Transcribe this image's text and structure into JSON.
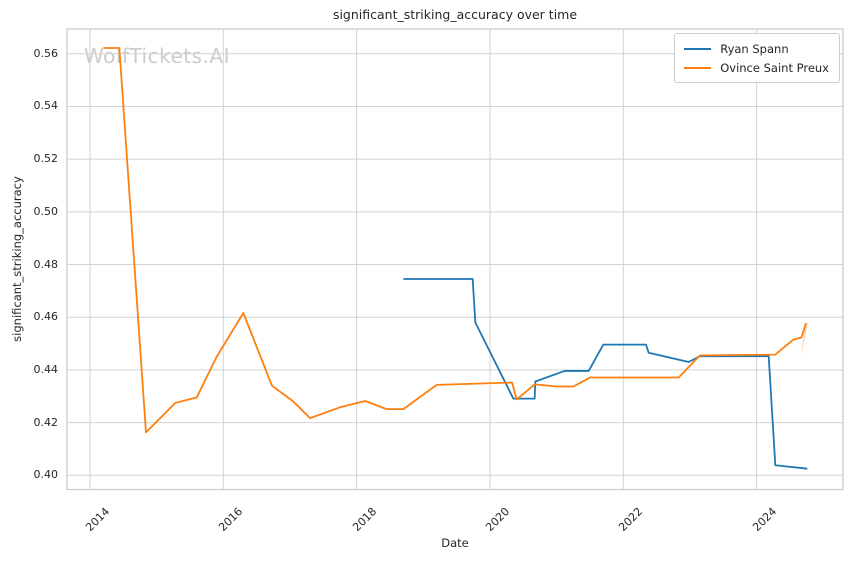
{
  "figure": {
    "title": "significant_striking_accuracy over time",
    "xlabel": "Date",
    "ylabel": "significant_striking_accuracy",
    "watermark": "WolfTickets.AI"
  },
  "chart_data": {
    "type": "line",
    "title": "significant_striking_accuracy over time",
    "xlabel": "Date",
    "ylabel": "significant_striking_accuracy",
    "watermark": "WolfTickets.AI",
    "grid": true,
    "legend_position": "upper-right",
    "x_unit": "decimal_year",
    "xlim": [
      2013.655,
      2025.295
    ],
    "ylim": [
      0.3946,
      0.5694
    ],
    "x_ticks": [
      "2014",
      "2016",
      "2018",
      "2020",
      "2022",
      "2024"
    ],
    "x_tick_values": [
      2014,
      2016,
      2018,
      2020,
      2022,
      2024
    ],
    "y_ticks": [
      "0.40",
      "0.42",
      "0.44",
      "0.46",
      "0.48",
      "0.50",
      "0.52",
      "0.54",
      "0.56"
    ],
    "y_tick_values": [
      0.4,
      0.42,
      0.44,
      0.46,
      0.48,
      0.5,
      0.52,
      0.54,
      0.56
    ],
    "colors": {
      "grid": "#d4d4d4",
      "spine": "#c9c9c9",
      "text": "#262626",
      "watermark": "#cccccc",
      "ryan_spann": "#1f77b4",
      "ovince_saint_preux": "#ff7f0e"
    },
    "series": [
      {
        "name": "Ryan Spann",
        "color": "#1f77b4",
        "points": [
          [
            2018.7,
            0.4745
          ],
          [
            2019.74,
            0.4745
          ],
          [
            2019.78,
            0.458
          ],
          [
            2020.35,
            0.4291
          ],
          [
            2020.67,
            0.4291
          ],
          [
            2020.68,
            0.4356
          ],
          [
            2021.12,
            0.4396
          ],
          [
            2021.48,
            0.4396
          ],
          [
            2021.7,
            0.4496
          ],
          [
            2022.34,
            0.4496
          ],
          [
            2022.38,
            0.4465
          ],
          [
            2022.98,
            0.443
          ],
          [
            2023.15,
            0.4452
          ],
          [
            2024.18,
            0.4452
          ],
          [
            2024.28,
            0.4038
          ],
          [
            2024.76,
            0.4025
          ]
        ]
      },
      {
        "name": "Ovince Saint Preux",
        "color": "#ff7f0e",
        "points": [
          [
            2014.2,
            0.5622
          ],
          [
            2014.44,
            0.5622
          ],
          [
            2014.84,
            0.4163
          ],
          [
            2015.28,
            0.4275
          ],
          [
            2015.6,
            0.4295
          ],
          [
            2015.9,
            0.445
          ],
          [
            2016.3,
            0.4616
          ],
          [
            2016.73,
            0.434
          ],
          [
            2017.05,
            0.428
          ],
          [
            2017.3,
            0.4217
          ],
          [
            2017.75,
            0.4258
          ],
          [
            2018.13,
            0.4282
          ],
          [
            2018.45,
            0.4251
          ],
          [
            2018.7,
            0.4251
          ],
          [
            2019.2,
            0.4343
          ],
          [
            2020.33,
            0.4352
          ],
          [
            2020.4,
            0.4288
          ],
          [
            2020.67,
            0.4345
          ],
          [
            2021.0,
            0.4337
          ],
          [
            2021.25,
            0.4337
          ],
          [
            2021.5,
            0.4371
          ],
          [
            2022.83,
            0.4371
          ],
          [
            2023.15,
            0.4455
          ],
          [
            2024.28,
            0.4458
          ],
          [
            2024.55,
            0.4515
          ],
          [
            2024.67,
            0.4523
          ],
          [
            2024.74,
            0.4577
          ]
        ]
      }
    ],
    "end_flare": {
      "color": "#ff7f0e",
      "opacity": 0.3,
      "points": [
        [
          2024.72,
          0.458
        ],
        [
          2024.77,
          0.458
        ],
        [
          2024.67,
          0.4452
        ]
      ]
    }
  }
}
